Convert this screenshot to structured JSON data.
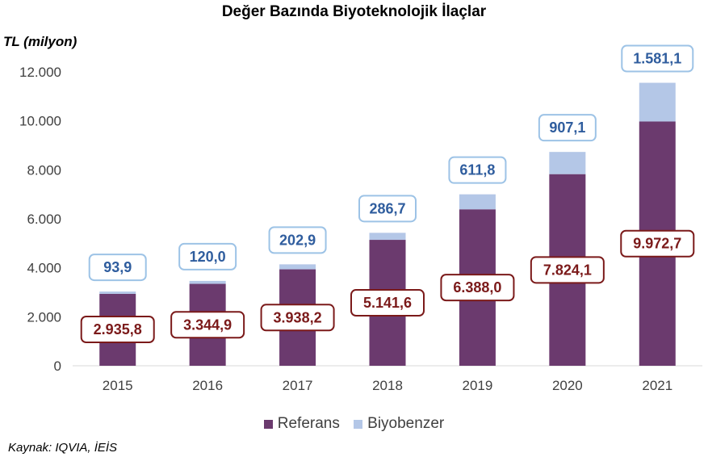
{
  "chart_data": {
    "type": "bar",
    "stacked": true,
    "title": "Değer Bazında Biyoteknolojik İlaçlar",
    "ylabel": "TL (milyon)",
    "categories": [
      "2015",
      "2016",
      "2017",
      "2018",
      "2019",
      "2020",
      "2021"
    ],
    "series": [
      {
        "name": "Referans",
        "color": "#6b3a6e",
        "label_border": "#7b1a1a",
        "label_color": "#7b1a1a",
        "values": [
          2935.8,
          3344.9,
          3938.2,
          5141.6,
          6388.0,
          7824.1,
          9972.7
        ],
        "labels": [
          "2.935,8",
          "3.344,9",
          "3.938,2",
          "5.141,6",
          "6.388,0",
          "7.824,1",
          "9.972,7"
        ]
      },
      {
        "name": "Biyobenzer",
        "color": "#b4c7e7",
        "label_border": "#9dc3e6",
        "label_color": "#2f5d9e",
        "values": [
          93.9,
          120.0,
          202.9,
          286.7,
          611.8,
          907.1,
          1581.1
        ],
        "labels": [
          "93,9",
          "120,0",
          "202,9",
          "286,7",
          "611,8",
          "907,1",
          "1.581,1"
        ]
      }
    ],
    "yticks": [
      0,
      2000,
      4000,
      6000,
      8000,
      10000,
      12000
    ],
    "ytick_labels": [
      "0",
      "2.000",
      "4.000",
      "6.000",
      "8.000",
      "10.000",
      "12.000"
    ],
    "ylim": [
      0,
      12000
    ],
    "grid": false,
    "legend": "bottom"
  },
  "legend": {
    "referans": "Referans",
    "biyobenzer": "Biyobenzer"
  },
  "source": "Kaynak: IQVIA, İEİS"
}
